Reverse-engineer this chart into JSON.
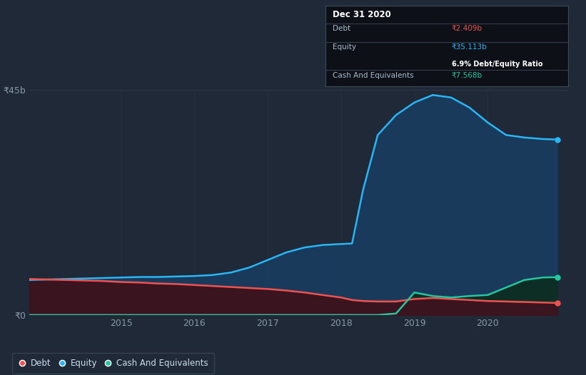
{
  "bg_color": "#1f2937",
  "plot_bg_color": "#1f2937",
  "grid_color": "#2d3a4a",
  "title_box": {
    "date": "Dec 31 2020",
    "debt_label": "Debt",
    "debt_value": "₹2.409b",
    "equity_label": "Equity",
    "equity_value": "₹35.113b",
    "ratio": "6.9% Debt/Equity Ratio",
    "cash_label": "Cash And Equivalents",
    "cash_value": "₹7.568b"
  },
  "y_label_top": "₹45b",
  "y_label_bottom": "₹0",
  "x_ticks": [
    "2015",
    "2016",
    "2017",
    "2018",
    "2019",
    "2020"
  ],
  "equity_color": "#29b6f6",
  "equity_fill": "#1a3a5c",
  "debt_color": "#ef5350",
  "debt_fill": "#3a1520",
  "cash_color": "#26c6a0",
  "cash_fill": "#0d2e24",
  "time_points": [
    2013.75,
    2014.0,
    2014.25,
    2014.5,
    2014.75,
    2015.0,
    2015.25,
    2015.5,
    2015.75,
    2016.0,
    2016.25,
    2016.5,
    2016.75,
    2017.0,
    2017.25,
    2017.5,
    2017.75,
    2018.0,
    2018.15,
    2018.3,
    2018.5,
    2018.75,
    2019.0,
    2019.25,
    2019.5,
    2019.75,
    2020.0,
    2020.25,
    2020.5,
    2020.75,
    2020.95
  ],
  "equity_values": [
    7.0,
    7.1,
    7.2,
    7.3,
    7.4,
    7.5,
    7.6,
    7.6,
    7.7,
    7.8,
    8.0,
    8.5,
    9.5,
    11.0,
    12.5,
    13.5,
    14.0,
    14.2,
    14.3,
    25.0,
    36.0,
    40.0,
    42.5,
    44.0,
    43.5,
    41.5,
    38.5,
    36.0,
    35.5,
    35.2,
    35.1
  ],
  "debt_values": [
    7.2,
    7.1,
    7.0,
    6.9,
    6.8,
    6.6,
    6.5,
    6.3,
    6.2,
    6.0,
    5.8,
    5.6,
    5.4,
    5.2,
    4.9,
    4.5,
    4.0,
    3.5,
    3.0,
    2.8,
    2.7,
    2.7,
    3.2,
    3.4,
    3.2,
    3.0,
    2.8,
    2.7,
    2.6,
    2.5,
    2.41
  ],
  "cash_values": [
    0.0,
    0.0,
    0.0,
    0.0,
    0.0,
    0.0,
    0.0,
    0.0,
    0.0,
    0.0,
    0.0,
    0.0,
    0.0,
    0.0,
    0.0,
    0.0,
    0.0,
    0.0,
    0.0,
    0.0,
    0.0,
    0.3,
    4.5,
    3.8,
    3.5,
    3.8,
    4.0,
    5.5,
    7.0,
    7.5,
    7.57
  ],
  "ylim": [
    0,
    45
  ],
  "xlim": [
    2013.75,
    2021.1
  ]
}
